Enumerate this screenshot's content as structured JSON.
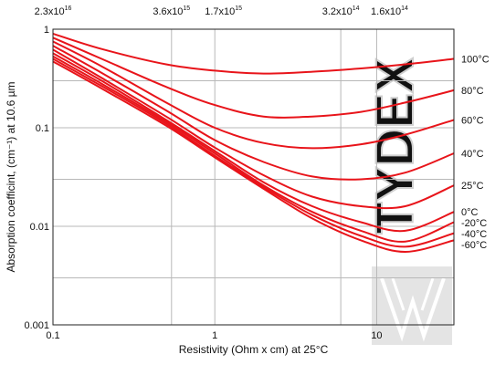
{
  "chart_data": {
    "type": "line",
    "title": "",
    "xlabel": "Resistivity (Ohm x cm) at 25°C",
    "ylabel": "Absorption coefficint, (cm⁻¹) at 10.6 µm",
    "x_scale": "log",
    "y_scale": "log",
    "xlim": [
      0.1,
      30
    ],
    "ylim": [
      0.001,
      1
    ],
    "grid": true,
    "legend": "none",
    "x_ticks": [
      {
        "value": 0.1,
        "label": "0.1"
      },
      {
        "value": 1,
        "label": "1"
      },
      {
        "value": 10,
        "label": "10"
      }
    ],
    "y_ticks": [
      {
        "value": 0.001,
        "label": "0.001"
      },
      {
        "value": 0.01,
        "label": "0.01"
      },
      {
        "value": 0.1,
        "label": "0.1"
      },
      {
        "value": 1,
        "label": "1"
      }
    ],
    "top_ticks": [
      {
        "value": 0.1,
        "label": "2.3x10",
        "exp": "16"
      },
      {
        "value": 0.54,
        "label": "3.6x10",
        "exp": "15"
      },
      {
        "value": 1.13,
        "label": "1.7x10",
        "exp": "15"
      },
      {
        "value": 6.0,
        "label": "3.2x10",
        "exp": "14"
      },
      {
        "value": 12.0,
        "label": "1.6x10",
        "exp": "14"
      }
    ],
    "series_color": "#e8141a",
    "series": [
      {
        "name": "100°C",
        "points": [
          [
            0.1,
            0.9
          ],
          [
            0.2,
            0.63
          ],
          [
            0.5,
            0.44
          ],
          [
            1,
            0.38
          ],
          [
            2,
            0.355
          ],
          [
            4,
            0.37
          ],
          [
            8,
            0.4
          ],
          [
            15,
            0.44
          ],
          [
            30,
            0.5
          ]
        ]
      },
      {
        "name": "80°C",
        "points": [
          [
            0.1,
            0.82
          ],
          [
            0.2,
            0.5
          ],
          [
            0.5,
            0.26
          ],
          [
            1,
            0.17
          ],
          [
            2,
            0.13
          ],
          [
            4,
            0.13
          ],
          [
            8,
            0.145
          ],
          [
            15,
            0.18
          ],
          [
            30,
            0.24
          ]
        ]
      },
      {
        "name": "60°C",
        "points": [
          [
            0.1,
            0.75
          ],
          [
            0.2,
            0.42
          ],
          [
            0.5,
            0.18
          ],
          [
            1,
            0.1
          ],
          [
            2,
            0.07
          ],
          [
            4,
            0.062
          ],
          [
            8,
            0.068
          ],
          [
            15,
            0.085
          ],
          [
            30,
            0.12
          ]
        ]
      },
      {
        "name": "40°C",
        "points": [
          [
            0.1,
            0.68
          ],
          [
            0.2,
            0.36
          ],
          [
            0.5,
            0.15
          ],
          [
            1,
            0.075
          ],
          [
            2,
            0.045
          ],
          [
            4,
            0.032
          ],
          [
            8,
            0.03
          ],
          [
            15,
            0.035
          ],
          [
            30,
            0.055
          ]
        ]
      },
      {
        "name": "25°C",
        "points": [
          [
            0.1,
            0.62
          ],
          [
            0.2,
            0.32
          ],
          [
            0.5,
            0.13
          ],
          [
            1,
            0.063
          ],
          [
            2,
            0.033
          ],
          [
            4,
            0.02
          ],
          [
            8,
            0.016
          ],
          [
            15,
            0.016
          ],
          [
            30,
            0.026
          ]
        ]
      },
      {
        "name": "0°C",
        "points": [
          [
            0.1,
            0.57
          ],
          [
            0.2,
            0.3
          ],
          [
            0.5,
            0.12
          ],
          [
            1,
            0.058
          ],
          [
            2,
            0.028
          ],
          [
            4,
            0.016
          ],
          [
            8,
            0.011
          ],
          [
            15,
            0.009
          ],
          [
            30,
            0.014
          ]
        ]
      },
      {
        "name": "-20°C",
        "points": [
          [
            0.1,
            0.53
          ],
          [
            0.2,
            0.28
          ],
          [
            0.5,
            0.115
          ],
          [
            1,
            0.055
          ],
          [
            2,
            0.026
          ],
          [
            4,
            0.014
          ],
          [
            8,
            0.009
          ],
          [
            15,
            0.007
          ],
          [
            30,
            0.011
          ]
        ]
      },
      {
        "name": "-40°C",
        "points": [
          [
            0.1,
            0.5
          ],
          [
            0.2,
            0.265
          ],
          [
            0.5,
            0.11
          ],
          [
            1,
            0.052
          ],
          [
            2,
            0.025
          ],
          [
            4,
            0.013
          ],
          [
            8,
            0.008
          ],
          [
            15,
            0.0062
          ],
          [
            30,
            0.0085
          ]
        ]
      },
      {
        "name": "-60°C",
        "points": [
          [
            0.1,
            0.47
          ],
          [
            0.2,
            0.25
          ],
          [
            0.5,
            0.105
          ],
          [
            1,
            0.05
          ],
          [
            2,
            0.024
          ],
          [
            4,
            0.012
          ],
          [
            8,
            0.0072
          ],
          [
            15,
            0.0055
          ],
          [
            30,
            0.0072
          ]
        ]
      }
    ],
    "annotations": [
      "TYDEX"
    ]
  }
}
